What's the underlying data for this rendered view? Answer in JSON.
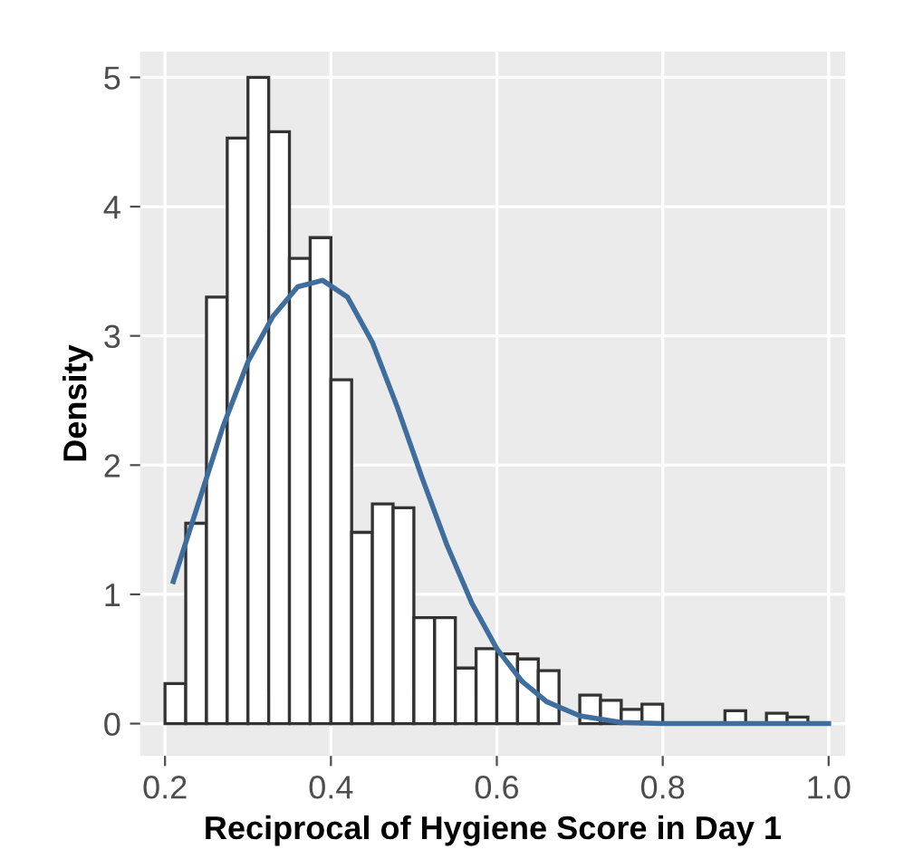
{
  "chart_data": {
    "type": "histogram",
    "xlabel": "Reciprocal of Hygiene Score in Day 1",
    "ylabel": "Density",
    "bins": [
      0.2,
      0.225,
      0.25,
      0.275,
      0.3,
      0.325,
      0.35,
      0.375,
      0.4,
      0.425,
      0.45,
      0.475,
      0.5,
      0.525,
      0.55,
      0.575,
      0.6,
      0.625,
      0.65,
      0.675,
      0.7,
      0.725,
      0.75,
      0.775,
      0.8,
      0.825,
      0.85,
      0.875,
      0.9,
      0.925,
      0.95,
      0.975,
      1.0
    ],
    "values": [
      0.31,
      1.55,
      3.3,
      4.53,
      5.0,
      4.58,
      3.6,
      3.76,
      2.66,
      1.48,
      1.7,
      1.67,
      0.82,
      0.82,
      0.43,
      0.58,
      0.54,
      0.5,
      0.41,
      null,
      0.22,
      0.18,
      0.11,
      0.15,
      null,
      null,
      null,
      0.1,
      null,
      0.08,
      0.05,
      null
    ],
    "color": "#ffffff",
    "series": [
      {
        "type": "line",
        "color": "#3f6e9e",
        "x": [
          0.21,
          0.24,
          0.27,
          0.3,
          0.33,
          0.36,
          0.39,
          0.42,
          0.45,
          0.48,
          0.51,
          0.54,
          0.57,
          0.6,
          0.63,
          0.66,
          0.7,
          0.75,
          0.8,
          1.0
        ],
        "values": [
          1.1,
          1.7,
          2.3,
          2.8,
          3.15,
          3.38,
          3.43,
          3.3,
          2.95,
          2.45,
          1.9,
          1.38,
          0.93,
          0.58,
          0.33,
          0.17,
          0.06,
          0.01,
          0,
          0
        ]
      }
    ],
    "xlim": [
      0.17,
      1.02
    ],
    "ylim": [
      -0.25,
      5.2
    ],
    "xticks": [
      {
        "value": 0.2,
        "label": "0.2"
      },
      {
        "value": 0.4,
        "label": "0.4"
      },
      {
        "value": 0.6,
        "label": "0.6"
      },
      {
        "value": 0.8,
        "label": "0.8"
      },
      {
        "value": 1.0,
        "label": "1.0"
      }
    ],
    "yticks": [
      0,
      1,
      2,
      3,
      4,
      5
    ],
    "grid": true
  }
}
